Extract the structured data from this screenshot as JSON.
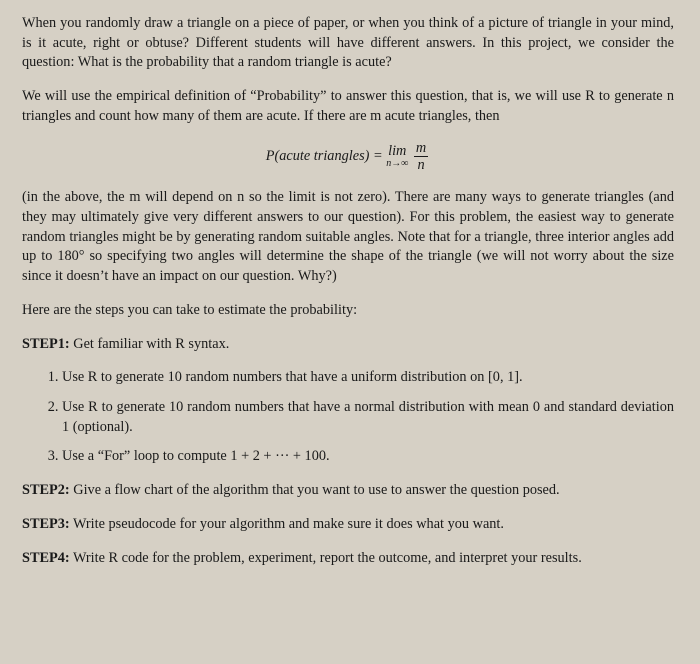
{
  "paragraphs": {
    "intro1": "When you randomly draw a triangle on a piece of paper, or when you think of a picture of triangle in your mind, is it acute, right or obtuse? Different students will have different answers. In this project, we consider the question: What is the probability that a random triangle is acute?",
    "intro2": "We will use the empirical definition of “Probability” to answer this question, that is, we will use R to generate n triangles and count how many of them are acute. If there are m acute triangles, then",
    "equation_lhs": "P(acute triangles) = ",
    "equation_lim": "lim",
    "equation_sub": "n→∞",
    "equation_num": "m",
    "equation_den": "n",
    "intro3": "(in the above, the m will depend on n so the limit is not zero). There are many ways to generate triangles (and they may ultimately give very different answers to our question). For this problem, the easiest way to generate random triangles might be by generating random suitable angles. Note that for a triangle, three interior angles add up to 180° so specifying two angles will determine the shape of the triangle (we will not worry about the size since it doesn’t have an impact on our question. Why?)",
    "steps_intro": "Here are the steps you can take to estimate the probability:"
  },
  "steps": {
    "step1_label": "STEP1:",
    "step1_text": " Get familiar with R syntax.",
    "step1_items": [
      "Use R to generate 10 random numbers that have a uniform distribution on [0, 1].",
      "Use R to generate 10 random numbers that have a normal distribution with mean 0 and standard deviation 1 (optional).",
      "Use a “For” loop to compute 1 + 2 + ··· + 100."
    ],
    "step2_label": "STEP2:",
    "step2_text": " Give a flow chart of the algorithm that you want to use to answer the question posed.",
    "step3_label": "STEP3:",
    "step3_text": " Write pseudocode for your algorithm and make sure it does what you want.",
    "step4_label": "STEP4:",
    "step4_text": " Write R code for the problem, experiment, report the outcome, and interpret your results."
  }
}
